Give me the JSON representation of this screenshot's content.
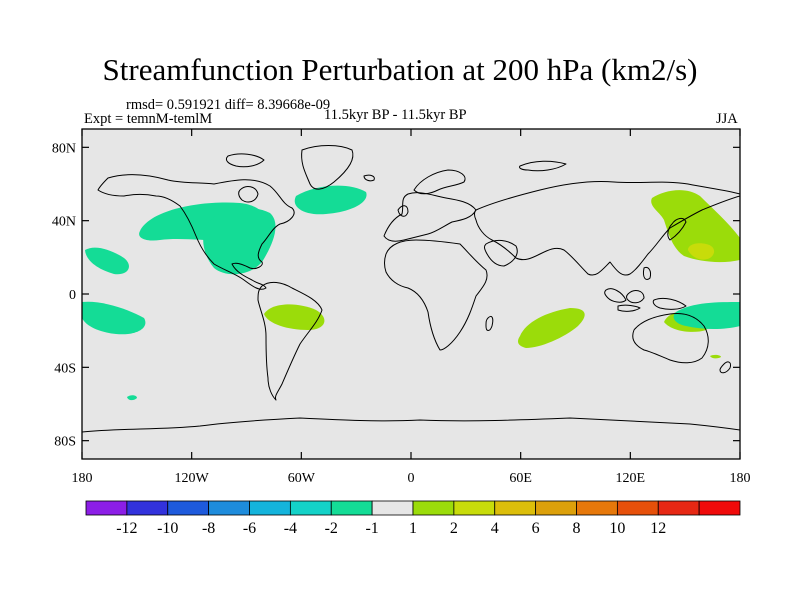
{
  "title": "Streamfunction Perturbation at 200 hPa (km2/s)",
  "stats_line": "rmsd= 0.591921 diff= 8.39668e-09",
  "experiment": "Expt = temnM-temlM",
  "period": "11.5kyr BP - 11.5kyr BP",
  "season": "JJA",
  "map": {
    "projection": "cylindrical equidistant",
    "lon_range": [
      -180,
      180
    ],
    "lat_range": [
      -90,
      90
    ],
    "background_color": "#e6e6e6",
    "y_ticks": [
      {
        "lat": 80,
        "label": "80N"
      },
      {
        "lat": 40,
        "label": "40N"
      },
      {
        "lat": 0,
        "label": "0"
      },
      {
        "lat": -40,
        "label": "40S"
      },
      {
        "lat": -80,
        "label": "80S"
      }
    ],
    "x_ticks": [
      {
        "lon": -180,
        "label": "180"
      },
      {
        "lon": -120,
        "label": "120W"
      },
      {
        "lon": -60,
        "label": "60W"
      },
      {
        "lon": 0,
        "label": "0"
      },
      {
        "lon": 60,
        "label": "60E"
      },
      {
        "lon": 120,
        "label": "120E"
      },
      {
        "lon": 180,
        "label": "180"
      }
    ]
  },
  "colorbar": {
    "colors": [
      "#8c1ee6",
      "#3232dc",
      "#1e5adc",
      "#1e8cdc",
      "#14b4dc",
      "#14d2c8",
      "#14dc96",
      "#e6e6e6",
      "#9bdc0a",
      "#c8dc0a",
      "#dcbe0a",
      "#dca00a",
      "#e6780a",
      "#e6500a",
      "#e62814",
      "#f00a0a"
    ],
    "labels": [
      "-12",
      "-10",
      "-8",
      "-6",
      "-4",
      "-2",
      "-1",
      "1",
      "2",
      "4",
      "6",
      "8",
      "10",
      "12"
    ]
  },
  "anomalies": [
    {
      "name": "north-pacific-negative",
      "level": "-1",
      "color": "#14dc96"
    },
    {
      "name": "north-america-negative",
      "level": "-1",
      "color": "#14dc96"
    },
    {
      "name": "north-atlantic-negative",
      "level": "-1",
      "color": "#14dc96"
    },
    {
      "name": "east-pacific-negative",
      "level": "-1",
      "color": "#14dc96"
    },
    {
      "name": "tropical-pacific-negative",
      "level": "-1",
      "color": "#14dc96"
    },
    {
      "name": "south-pacific-negative",
      "level": "-1",
      "color": "#14dc96"
    },
    {
      "name": "south-america-positive",
      "level": "1",
      "color": "#9bdc0a"
    },
    {
      "name": "indian-ocean-positive",
      "level": "1",
      "color": "#9bdc0a"
    },
    {
      "name": "nw-pacific-positive",
      "level": "1",
      "color": "#9bdc0a"
    },
    {
      "name": "nw-pacific-core-positive",
      "level": "2",
      "color": "#c8dc0a"
    },
    {
      "name": "maritime-positive",
      "level": "1",
      "color": "#9bdc0a"
    },
    {
      "name": "australia-negative",
      "level": "-1",
      "color": "#14dc96"
    },
    {
      "name": "east-asia-positive",
      "level": "1",
      "color": "#9bdc0a"
    }
  ]
}
